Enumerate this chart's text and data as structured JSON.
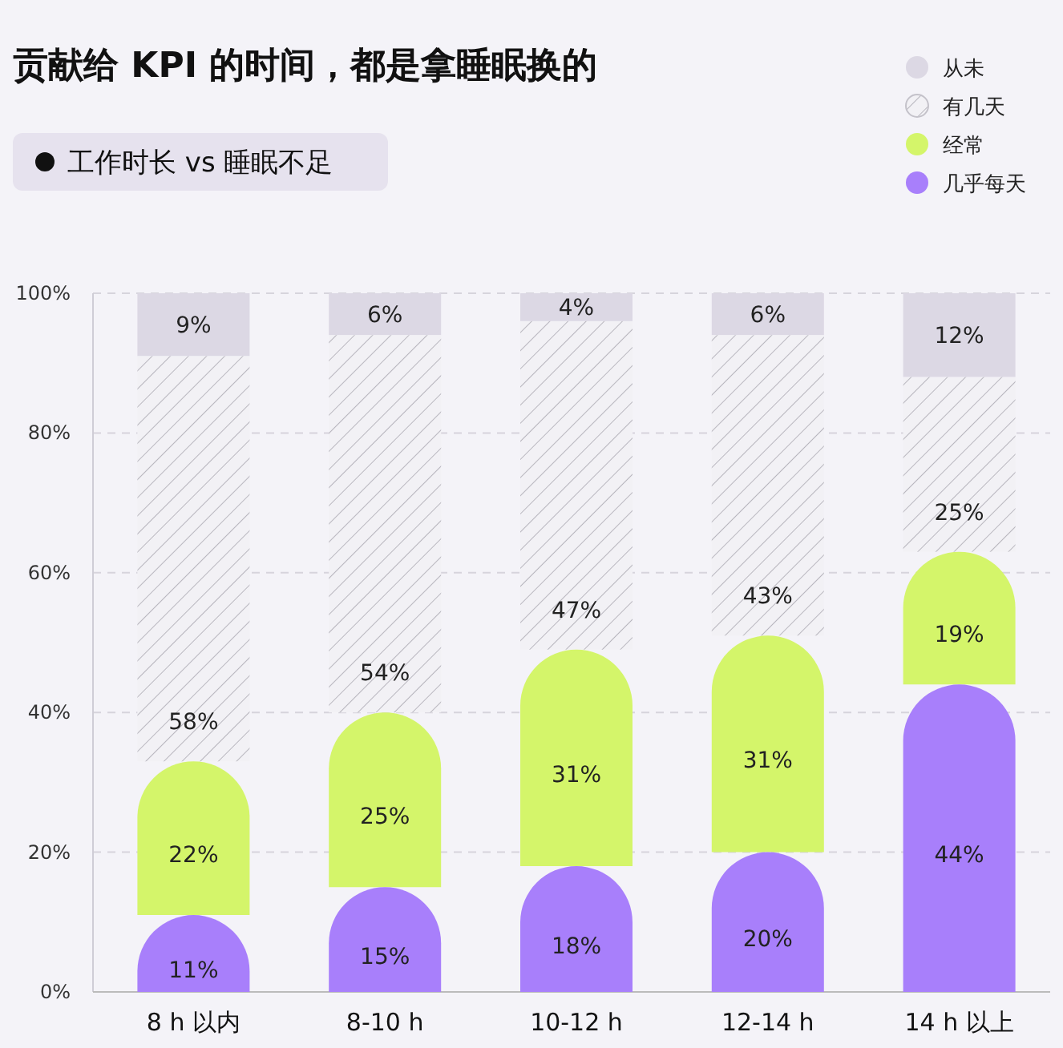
{
  "chart_data": {
    "type": "bar",
    "stacked": true,
    "title": "贡献给 KPI 的时间，都是拿睡眠换的",
    "subtitle": "工作时长 vs 睡眠不足",
    "categories": [
      "8 h 以内",
      "8-10 h",
      "10-12 h",
      "12-14 h",
      "14 h 以上"
    ],
    "series": [
      {
        "name": "几乎每天",
        "color": "#a87ffb",
        "values": [
          11,
          15,
          18,
          20,
          44
        ],
        "value_labels": [
          "11%",
          "15%",
          "18%",
          "20%",
          "44%"
        ]
      },
      {
        "name": "经常",
        "color": "#d4f56a",
        "values": [
          22,
          25,
          31,
          31,
          19
        ],
        "value_labels": [
          "22%",
          "25%",
          "31%",
          "31%",
          "19%"
        ]
      },
      {
        "name": "有几天",
        "color": "#f2f1f5",
        "values": [
          58,
          54,
          47,
          43,
          25
        ],
        "value_labels": [
          "58%",
          "54%",
          "47%",
          "43%",
          "25%"
        ]
      },
      {
        "name": "从未",
        "color": "#dcd8e4",
        "values": [
          9,
          6,
          4,
          6,
          12
        ],
        "value_labels": [
          "9%",
          "6%",
          "4%",
          "6%",
          "12%"
        ]
      }
    ],
    "ylim": [
      0,
      100
    ],
    "yticks": [
      {
        "value": 0,
        "label": "0%"
      },
      {
        "value": 20,
        "label": "20%"
      },
      {
        "value": 40,
        "label": "40%"
      },
      {
        "value": 60,
        "label": "60%"
      },
      {
        "value": 80,
        "label": "80%"
      },
      {
        "value": 100,
        "label": "100%"
      }
    ],
    "grid": "y",
    "legend": "top right"
  }
}
